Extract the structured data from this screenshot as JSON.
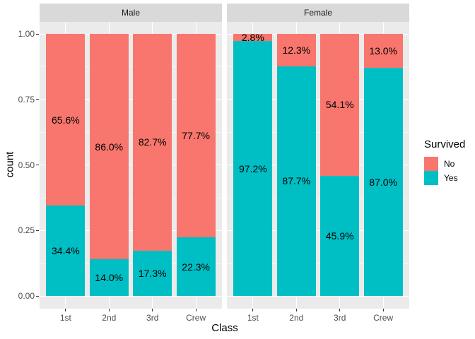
{
  "chart_data": {
    "type": "bar",
    "subtype": "stacked-percent-faceted",
    "xlabel": "Class",
    "ylabel": "count",
    "categories": [
      "1st",
      "2nd",
      "3rd",
      "Crew"
    ],
    "y_ticks": [
      {
        "label": "1.00",
        "value": 1.0
      },
      {
        "label": "0.75",
        "value": 0.75
      },
      {
        "label": "0.50",
        "value": 0.5
      },
      {
        "label": "0.25",
        "value": 0.25
      },
      {
        "label": "0.00",
        "value": 0.0
      }
    ],
    "ylim": [
      0,
      1
    ],
    "grid": "on",
    "legend_position": "right",
    "legend": {
      "title": "Survived",
      "entries": [
        {
          "label": "No",
          "color": "#F8766D"
        },
        {
          "label": "Yes",
          "color": "#00BFC4"
        }
      ]
    },
    "facets": [
      {
        "label": "Male",
        "bars": [
          {
            "category": "1st",
            "no": 65.6,
            "yes": 34.4,
            "no_label": "65.6%",
            "yes_label": "34.4%"
          },
          {
            "category": "2nd",
            "no": 86.0,
            "yes": 14.0,
            "no_label": "86.0%",
            "yes_label": "14.0%"
          },
          {
            "category": "3rd",
            "no": 82.7,
            "yes": 17.3,
            "no_label": "82.7%",
            "yes_label": "17.3%"
          },
          {
            "category": "Crew",
            "no": 77.7,
            "yes": 22.3,
            "no_label": "77.7%",
            "yes_label": "22.3%"
          }
        ]
      },
      {
        "label": "Female",
        "bars": [
          {
            "category": "1st",
            "no": 2.8,
            "yes": 97.2,
            "no_label": "2.8%",
            "yes_label": "97.2%"
          },
          {
            "category": "2nd",
            "no": 12.3,
            "yes": 87.7,
            "no_label": "12.3%",
            "yes_label": "87.7%"
          },
          {
            "category": "3rd",
            "no": 54.1,
            "yes": 45.9,
            "no_label": "54.1%",
            "yes_label": "45.9%"
          },
          {
            "category": "Crew",
            "no": 13.0,
            "yes": 87.0,
            "no_label": "13.0%",
            "yes_label": "87.0%"
          }
        ]
      }
    ],
    "colors": {
      "no": "#F8766D",
      "yes": "#00BFC4",
      "panel_bg": "#EBEBEB",
      "strip_bg": "#D9D9D9",
      "grid": "#FFFFFF",
      "axis_text": "#4D4D4D",
      "tick": "#333333"
    }
  }
}
